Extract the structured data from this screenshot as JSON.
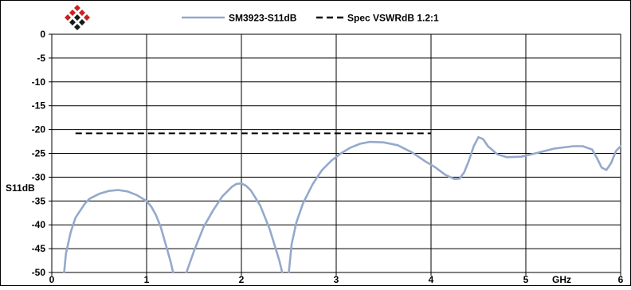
{
  "legend": {
    "items": [
      {
        "label": "SM3923-S11dB",
        "style": "solid"
      },
      {
        "label": "Spec VSWRdB 1.2:1",
        "style": "dashed"
      }
    ]
  },
  "colors": {
    "series_line": "#94a9cb",
    "spec_line": "#000000",
    "logo_red": "#cc1f1f",
    "logo_dark": "#1a1a1a"
  },
  "icons": {
    "logo": "diamond-grid-logo-icon"
  },
  "chart_data": {
    "type": "line",
    "title": "",
    "xlabel": "GHz",
    "ylabel": "S11dB",
    "xlim": [
      0,
      6
    ],
    "ylim": [
      -50,
      0
    ],
    "x_ticks": [
      0,
      1,
      2,
      3,
      4,
      5,
      6
    ],
    "x_tick_labels": [
      "0",
      "1",
      "2",
      "3",
      "4",
      "5",
      "6"
    ],
    "y_ticks": [
      0,
      -5,
      -10,
      -15,
      -20,
      -25,
      -30,
      -35,
      -40,
      -45,
      -50
    ],
    "y_tick_labels": [
      "0",
      "-5",
      "-10",
      "-15",
      "-20",
      "-25",
      "-30",
      "-35",
      "-40",
      "-45",
      "-50"
    ],
    "grid": true,
    "legend_position": "top",
    "series": [
      {
        "name": "SM3923-S11dB",
        "style": "solid",
        "segments": [
          [
            [
              0.13,
              -50
            ],
            [
              0.15,
              -46
            ],
            [
              0.2,
              -41.5
            ],
            [
              0.25,
              -38.5
            ],
            [
              0.3,
              -37
            ],
            [
              0.35,
              -35.5
            ],
            [
              0.4,
              -34.5
            ],
            [
              0.5,
              -33.5
            ],
            [
              0.6,
              -32.9
            ],
            [
              0.7,
              -32.7
            ],
            [
              0.8,
              -33
            ],
            [
              0.9,
              -33.8
            ],
            [
              1.0,
              -35
            ],
            [
              1.05,
              -36.2
            ],
            [
              1.1,
              -38
            ],
            [
              1.15,
              -40.5
            ],
            [
              1.2,
              -44
            ],
            [
              1.25,
              -47.5
            ],
            [
              1.28,
              -50
            ]
          ],
          [
            [
              1.42,
              -50
            ],
            [
              1.5,
              -45.5
            ],
            [
              1.6,
              -40.5
            ],
            [
              1.7,
              -37
            ],
            [
              1.8,
              -34
            ],
            [
              1.9,
              -32
            ],
            [
              1.95,
              -31.4
            ],
            [
              2.0,
              -31.3
            ],
            [
              2.05,
              -31.8
            ],
            [
              2.1,
              -32.8
            ],
            [
              2.2,
              -36
            ],
            [
              2.3,
              -41
            ],
            [
              2.4,
              -47.5
            ],
            [
              2.43,
              -50
            ]
          ],
          [
            [
              2.5,
              -50
            ],
            [
              2.53,
              -44
            ],
            [
              2.58,
              -39.5
            ],
            [
              2.65,
              -35.5
            ],
            [
              2.75,
              -31.5
            ],
            [
              2.85,
              -28.5
            ],
            [
              2.95,
              -26.5
            ],
            [
              3.05,
              -25
            ],
            [
              3.15,
              -23.8
            ],
            [
              3.25,
              -23
            ],
            [
              3.35,
              -22.6
            ],
            [
              3.5,
              -22.7
            ],
            [
              3.65,
              -23.3
            ],
            [
              3.8,
              -24.8
            ],
            [
              3.95,
              -26.8
            ],
            [
              4.05,
              -28
            ],
            [
              4.15,
              -29.5
            ],
            [
              4.25,
              -30.4
            ],
            [
              4.3,
              -30.3
            ],
            [
              4.35,
              -29
            ],
            [
              4.4,
              -26.5
            ],
            [
              4.45,
              -23.5
            ],
            [
              4.5,
              -21.6
            ],
            [
              4.55,
              -22
            ],
            [
              4.6,
              -23.5
            ],
            [
              4.7,
              -25.2
            ],
            [
              4.8,
              -25.8
            ],
            [
              4.95,
              -25.7
            ],
            [
              5.1,
              -25
            ],
            [
              5.3,
              -24
            ],
            [
              5.5,
              -23.5
            ],
            [
              5.6,
              -23.5
            ],
            [
              5.7,
              -24.2
            ],
            [
              5.75,
              -26
            ],
            [
              5.8,
              -28
            ],
            [
              5.85,
              -28.5
            ],
            [
              5.9,
              -27
            ],
            [
              5.95,
              -24.5
            ],
            [
              6.0,
              -23.5
            ]
          ]
        ]
      },
      {
        "name": "Spec VSWRdB 1.2:1",
        "style": "dashed",
        "x": [
          0.25,
          4.0
        ],
        "y": [
          -20.8,
          -20.8
        ]
      }
    ]
  }
}
